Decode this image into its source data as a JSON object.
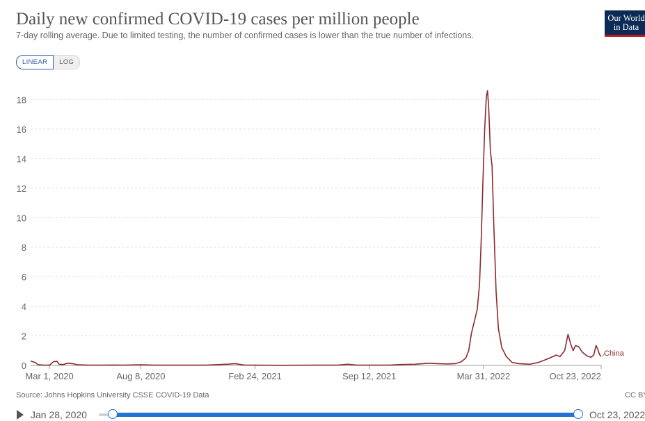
{
  "header": {
    "title": "Daily new confirmed COVID-19 cases per million people",
    "subtitle": "7-day rolling average. Due to limited testing, the number of confirmed cases is lower than the true number of infections.",
    "logo_line1": "Our World",
    "logo_line2": "in Data"
  },
  "controls": {
    "linear_label": "LINEAR",
    "log_label": "LOG",
    "selected": "LINEAR"
  },
  "footer": {
    "source": "Source: Johns Hopkins University CSSE COVID-19 Data",
    "license": "CC BY"
  },
  "timeline": {
    "start_label": "Jan 28, 2020",
    "end_label": "Oct 23, 2022"
  },
  "colors": {
    "series": "#8c2a2e",
    "accent": "#2272d8",
    "grid": "#dddddd"
  },
  "chart_data": {
    "type": "line",
    "title": "Daily new confirmed COVID-19 cases per million people",
    "ylim": [
      0,
      19
    ],
    "yticks": [
      0,
      2,
      4,
      6,
      8,
      10,
      12,
      14,
      16,
      18
    ],
    "xlim": [
      "2020-01-28",
      "2022-10-23"
    ],
    "xticks": [
      {
        "date": "2020-03-01",
        "label": "Mar 1, 2020"
      },
      {
        "date": "2020-08-08",
        "label": "Aug 8, 2020"
      },
      {
        "date": "2021-02-24",
        "label": "Feb 24, 2021"
      },
      {
        "date": "2021-09-12",
        "label": "Sep 12, 2021"
      },
      {
        "date": "2022-03-31",
        "label": "Mar 31, 2022"
      },
      {
        "date": "2022-10-23",
        "label": "Oct 23, 2022"
      }
    ],
    "grid": true,
    "series": [
      {
        "name": "China",
        "points": [
          [
            "2020-01-28",
            0.3
          ],
          [
            "2020-02-05",
            0.2
          ],
          [
            "2020-02-10",
            0.05
          ],
          [
            "2020-02-20",
            0.02
          ],
          [
            "2020-03-01",
            0.02
          ],
          [
            "2020-03-08",
            0.25
          ],
          [
            "2020-03-14",
            0.28
          ],
          [
            "2020-03-18",
            0.08
          ],
          [
            "2020-03-25",
            0.06
          ],
          [
            "2020-04-02",
            0.15
          ],
          [
            "2020-04-10",
            0.12
          ],
          [
            "2020-04-20",
            0.04
          ],
          [
            "2020-05-10",
            0.02
          ],
          [
            "2020-06-01",
            0.02
          ],
          [
            "2020-06-20",
            0.03
          ],
          [
            "2020-07-10",
            0.02
          ],
          [
            "2020-08-08",
            0.04
          ],
          [
            "2020-09-01",
            0.02
          ],
          [
            "2020-10-15",
            0.02
          ],
          [
            "2020-12-01",
            0.02
          ],
          [
            "2021-01-10",
            0.09
          ],
          [
            "2021-01-20",
            0.12
          ],
          [
            "2021-02-05",
            0.03
          ],
          [
            "2021-02-24",
            0.02
          ],
          [
            "2021-04-15",
            0.01
          ],
          [
            "2021-06-10",
            0.02
          ],
          [
            "2021-07-20",
            0.03
          ],
          [
            "2021-08-05",
            0.08
          ],
          [
            "2021-08-20",
            0.03
          ],
          [
            "2021-09-12",
            0.02
          ],
          [
            "2021-10-20",
            0.03
          ],
          [
            "2021-11-05",
            0.06
          ],
          [
            "2021-12-01",
            0.08
          ],
          [
            "2021-12-25",
            0.15
          ],
          [
            "2022-01-10",
            0.12
          ],
          [
            "2022-01-25",
            0.1
          ],
          [
            "2022-02-10",
            0.12
          ],
          [
            "2022-02-20",
            0.25
          ],
          [
            "2022-02-28",
            0.5
          ],
          [
            "2022-03-05",
            1.0
          ],
          [
            "2022-03-10",
            2.2
          ],
          [
            "2022-03-15",
            3.0
          ],
          [
            "2022-03-20",
            3.8
          ],
          [
            "2022-03-24",
            5.5
          ],
          [
            "2022-03-27",
            8.5
          ],
          [
            "2022-03-30",
            12.5
          ],
          [
            "2022-04-02",
            16.0
          ],
          [
            "2022-04-05",
            18.2
          ],
          [
            "2022-04-07",
            18.6
          ],
          [
            "2022-04-09",
            17.5
          ],
          [
            "2022-04-12",
            14.5
          ],
          [
            "2022-04-15",
            13.5
          ],
          [
            "2022-04-18",
            9.5
          ],
          [
            "2022-04-22",
            5.0
          ],
          [
            "2022-04-26",
            2.5
          ],
          [
            "2022-05-02",
            1.2
          ],
          [
            "2022-05-10",
            0.6
          ],
          [
            "2022-05-20",
            0.2
          ],
          [
            "2022-06-01",
            0.12
          ],
          [
            "2022-06-20",
            0.08
          ],
          [
            "2022-07-05",
            0.2
          ],
          [
            "2022-07-15",
            0.35
          ],
          [
            "2022-07-25",
            0.5
          ],
          [
            "2022-08-05",
            0.7
          ],
          [
            "2022-08-12",
            0.6
          ],
          [
            "2022-08-20",
            1.0
          ],
          [
            "2022-08-26",
            2.1
          ],
          [
            "2022-08-31",
            1.4
          ],
          [
            "2022-09-04",
            1.0
          ],
          [
            "2022-09-08",
            1.35
          ],
          [
            "2022-09-14",
            1.25
          ],
          [
            "2022-09-20",
            0.9
          ],
          [
            "2022-09-28",
            0.65
          ],
          [
            "2022-10-05",
            0.55
          ],
          [
            "2022-10-10",
            0.7
          ],
          [
            "2022-10-14",
            1.35
          ],
          [
            "2022-10-17",
            1.1
          ],
          [
            "2022-10-20",
            0.75
          ],
          [
            "2022-10-23",
            0.6
          ]
        ]
      }
    ]
  }
}
